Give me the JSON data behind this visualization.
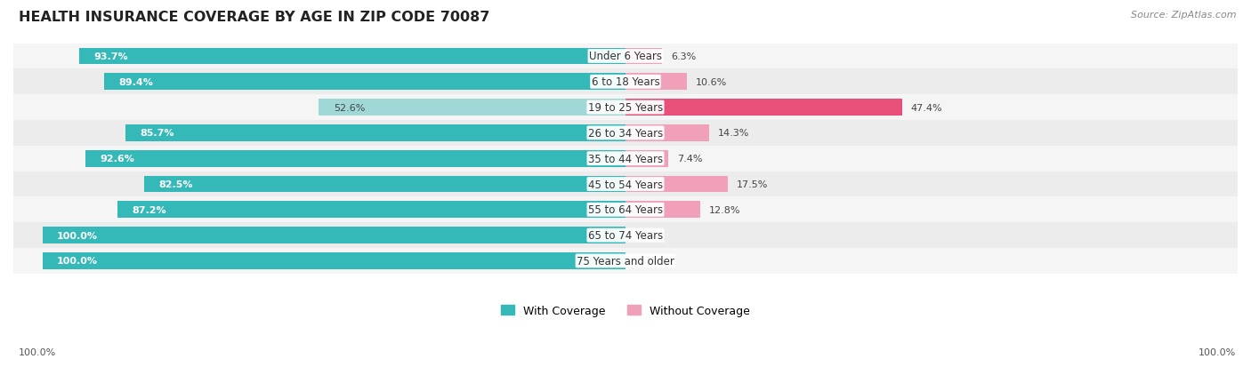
{
  "title": "HEALTH INSURANCE COVERAGE BY AGE IN ZIP CODE 70087",
  "source": "Source: ZipAtlas.com",
  "categories": [
    "Under 6 Years",
    "6 to 18 Years",
    "19 to 25 Years",
    "26 to 34 Years",
    "35 to 44 Years",
    "45 to 54 Years",
    "55 to 64 Years",
    "65 to 74 Years",
    "75 Years and older"
  ],
  "with_coverage": [
    93.7,
    89.4,
    52.6,
    85.7,
    92.6,
    82.5,
    87.2,
    100.0,
    100.0
  ],
  "without_coverage": [
    6.3,
    10.6,
    47.4,
    14.3,
    7.4,
    17.5,
    12.8,
    0.0,
    0.0
  ],
  "color_with": "#35b8b8",
  "color_with_light": "#a0d8d8",
  "color_without_strong": "#e8507a",
  "color_without_light": "#f0a0b8",
  "row_colors": [
    "#f5f5f5",
    "#ececec"
  ],
  "x_left_label": "100.0%",
  "x_right_label": "100.0%",
  "legend_with": "With Coverage",
  "legend_without": "Without Coverage",
  "source_text": "Source: ZipAtlas.com"
}
